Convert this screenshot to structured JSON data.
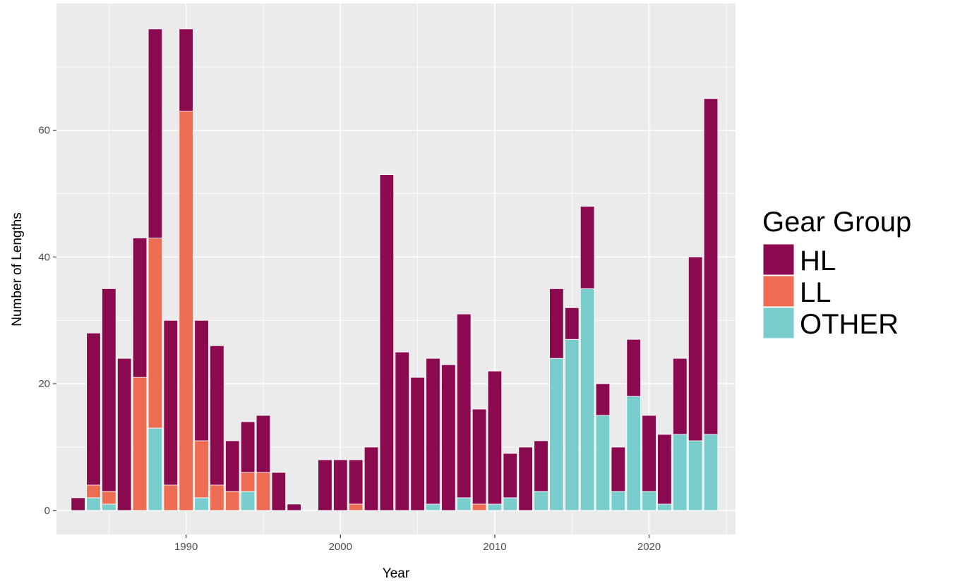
{
  "chart_data": {
    "type": "bar",
    "stacked": true,
    "xlabel": "Year",
    "ylabel": "Number of Lengths",
    "xlim": [
      1981.6,
      2025.6
    ],
    "ylim": [
      -3.8,
      80
    ],
    "x_ticks": [
      1990,
      2000,
      2010,
      2020
    ],
    "y_ticks": [
      0,
      20,
      40,
      60
    ],
    "grid": true,
    "legend": {
      "title": "Gear Group",
      "position": "right"
    },
    "x": [
      1983,
      1984,
      1985,
      1986,
      1987,
      1988,
      1989,
      1990,
      1991,
      1992,
      1993,
      1994,
      1995,
      1996,
      1997,
      1998,
      1999,
      2000,
      2001,
      2002,
      2003,
      2004,
      2005,
      2006,
      2007,
      2008,
      2009,
      2010,
      2011,
      2012,
      2013,
      2014,
      2015,
      2016,
      2017,
      2018,
      2019,
      2020,
      2021,
      2022,
      2023,
      2024
    ],
    "series": [
      {
        "name": "OTHER",
        "color": "#7acdcd",
        "values": [
          0,
          2,
          1,
          0,
          0,
          13,
          0,
          0,
          2,
          0,
          0,
          3,
          0,
          0,
          0,
          0,
          0,
          0,
          0,
          0,
          0,
          0,
          0,
          1,
          0,
          2,
          0,
          1,
          2,
          0,
          3,
          24,
          27,
          35,
          15,
          3,
          18,
          3,
          1,
          12,
          11,
          12
        ]
      },
      {
        "name": "LL",
        "color": "#ee6c52",
        "values": [
          0,
          2,
          2,
          0,
          21,
          30,
          4,
          63,
          9,
          4,
          3,
          3,
          6,
          0,
          0,
          0,
          0,
          0,
          1,
          0,
          0,
          0,
          0,
          0,
          0,
          0,
          1,
          0,
          0,
          0,
          0,
          0,
          0,
          0,
          0,
          0,
          0,
          0,
          0,
          0,
          0,
          0
        ]
      },
      {
        "name": "HL",
        "color": "#8b0a4f",
        "values": [
          2,
          24,
          32,
          24,
          22,
          33,
          26,
          13,
          19,
          22,
          8,
          8,
          9,
          6,
          1,
          0,
          8,
          8,
          7,
          10,
          53,
          25,
          21,
          23,
          23,
          29,
          15,
          21,
          7,
          10,
          8,
          11,
          5,
          13,
          5,
          7,
          9,
          12,
          11,
          12,
          29,
          53
        ]
      }
    ],
    "legend_order": [
      "HL",
      "LL",
      "OTHER"
    ]
  }
}
